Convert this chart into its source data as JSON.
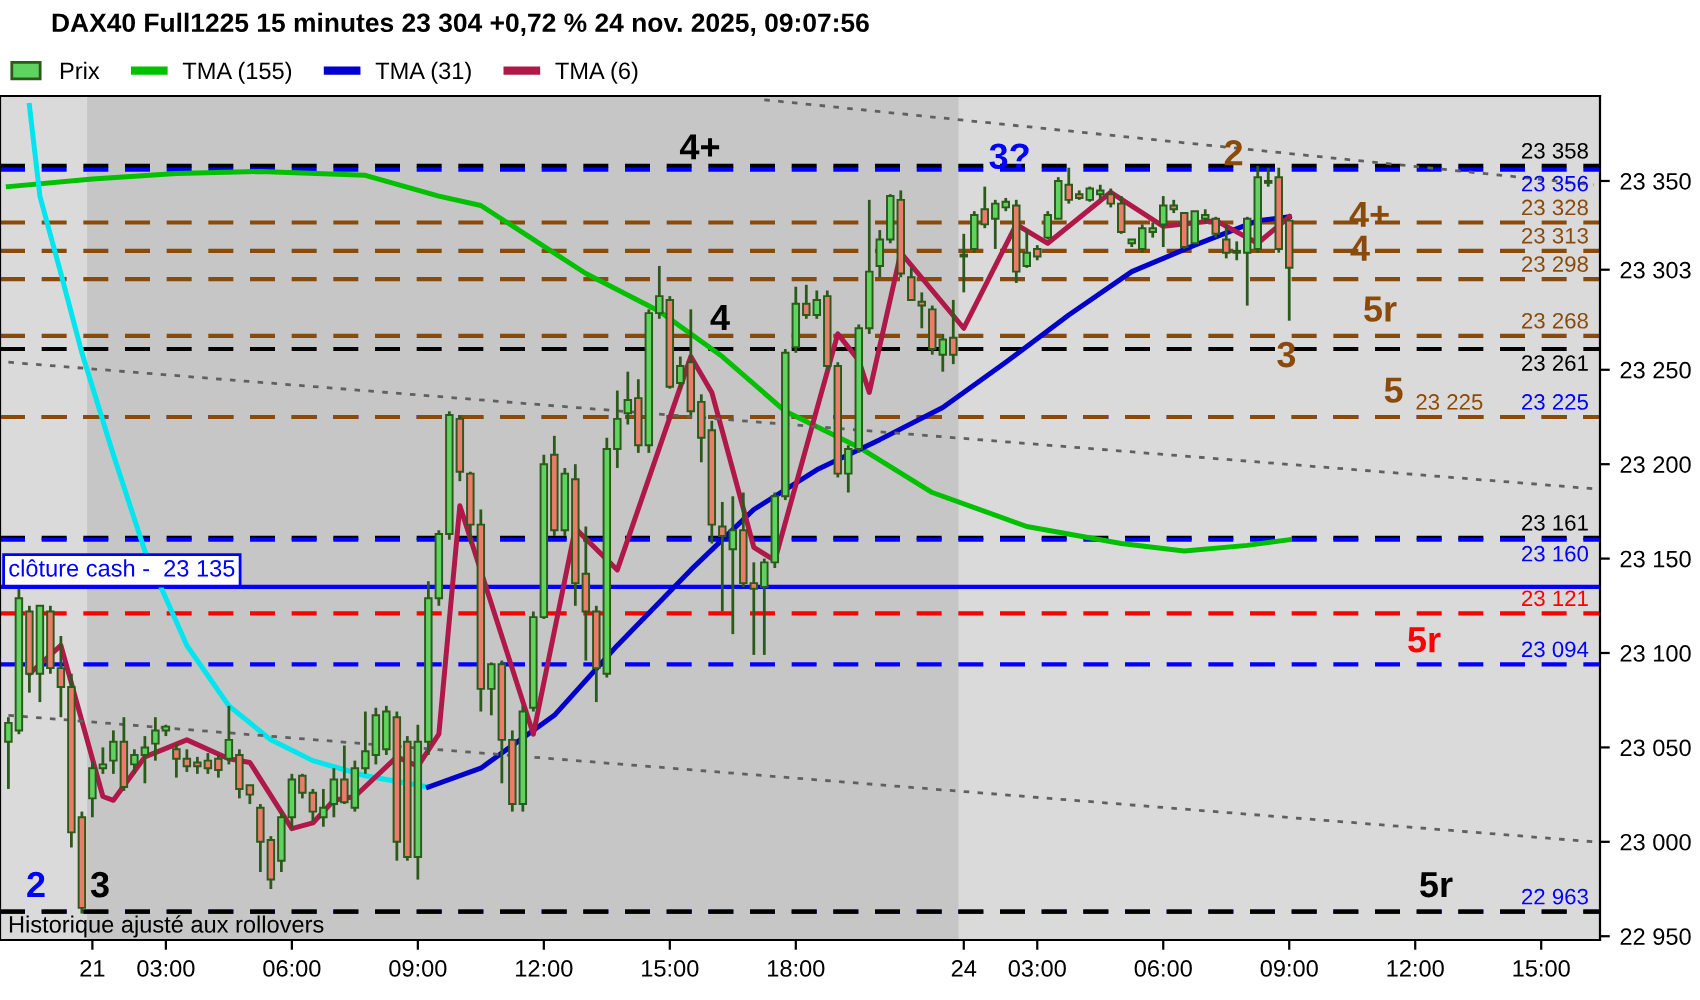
{
  "chart_data": {
    "type": "candlestick",
    "title": "DAX40 Full1225 15 minutes 23 304 +0,72 % 24 nov. 2025, 09:07:56",
    "categories": [
      null,
      null,
      null,
      null,
      null,
      null,
      null,
      null,
      "21",
      null,
      null,
      null,
      null,
      null,
      null,
      "03:00",
      null,
      null,
      null,
      null,
      null,
      null,
      null,
      null,
      null,
      null,
      null,
      "06:00",
      null,
      null,
      null,
      null,
      null,
      null,
      null,
      null,
      null,
      null,
      null,
      "09:00",
      null,
      null,
      null,
      null,
      null,
      null,
      null,
      null,
      null,
      null,
      null,
      "12:00",
      null,
      null,
      null,
      null,
      null,
      null,
      null,
      null,
      null,
      null,
      null,
      "15:00",
      null,
      null,
      null,
      null,
      null,
      null,
      null,
      null,
      null,
      null,
      null,
      "18:00",
      null,
      null,
      null,
      null,
      null,
      null,
      null,
      null,
      null,
      null,
      null,
      null,
      null,
      null,
      null,
      "24",
      null,
      null,
      null,
      null,
      null,
      null,
      "03:00",
      null,
      null,
      null,
      null,
      null,
      null,
      null,
      null,
      null,
      null,
      null,
      "06:00",
      null,
      null,
      null,
      null,
      null,
      null,
      null,
      null,
      null,
      null,
      null,
      "09:00",
      null,
      null,
      null,
      null,
      null,
      null,
      null,
      null,
      null,
      null,
      null,
      "12:00",
      null,
      null,
      null,
      null,
      null,
      null,
      null,
      null,
      null,
      null,
      null,
      "15:00",
      null,
      null,
      null,
      null,
      null
    ],
    "series": [
      {
        "name": "Prix",
        "type": "candlestick",
        "colors": [
          "#5fd35f",
          "#5fd35f",
          "#ec7b6c",
          "#5fd35f",
          "#ec7b6c",
          "#ec7b6c",
          "#ec7b6c",
          "#ec7b6c",
          "#5fd35f",
          "#5fd35f",
          "#5fd35f",
          "#ec7b6c",
          "#5fd35f",
          "#5fd35f",
          "#5fd35f",
          "#5fd35f",
          "#ec7b6c",
          "#ec7b6c",
          "#ec7b6c",
          "#ec7b6c",
          "#ec7b6c",
          "#5fd35f",
          "#ec7b6c",
          "#ec7b6c",
          "#ec7b6c",
          "#ec7b6c",
          "#5fd35f",
          "#5fd35f",
          "#ec7b6c",
          "#ec7b6c",
          "#5fd35f",
          "#5fd35f",
          "#ec7b6c",
          "#5fd35f",
          "#5fd35f",
          "#5fd35f",
          "#5fd35f",
          "#ec7b6c",
          "#ec7b6c",
          "#5fd35f",
          "#5fd35f",
          "#5fd35f",
          "#5fd35f",
          "#ec7b6c",
          "#ec7b6c",
          "#ec7b6c",
          "#5fd35f",
          "#ec7b6c",
          "#ec7b6c",
          "#5fd35f",
          "#5fd35f",
          "#5fd35f",
          "#ec7b6c",
          "#5fd35f",
          "#ec7b6c",
          "#ec7b6c",
          "#ec7b6c",
          "#5fd35f",
          "#5fd35f",
          "#5fd35f",
          "#ec7b6c",
          "#5fd35f",
          "#5fd35f",
          "#ec7b6c",
          "#5fd35f",
          "#ec7b6c",
          "#ec7b6c",
          "#ec7b6c",
          "#ec7b6c",
          "#5fd35f",
          "#ec7b6c",
          "#ec7b6c",
          "#5fd35f",
          "#5fd35f",
          "#5fd35f",
          "#5fd35f",
          "#ec7b6c",
          "#5fd35f",
          "#ec7b6c",
          "#ec7b6c",
          "#5fd35f",
          "#5fd35f",
          "#5fd35f",
          "#5fd35f",
          "#5fd35f",
          "#ec7b6c",
          "#ec7b6c",
          "#ec7b6c",
          "#ec7b6c",
          "#5fd35f",
          "#ec7b6c",
          "#5fd35f",
          "#5fd35f",
          "#ec7b6c",
          "#5fd35f",
          "#5fd35f",
          "#ec7b6c",
          "#5fd35f",
          "#ec7b6c",
          "#5fd35f",
          "#5fd35f",
          "#ec7b6c",
          "#ec7b6c",
          "#5fd35f",
          "#5fd35f",
          "#ec7b6c",
          "#ec7b6c",
          "#5fd35f",
          "#5fd35f",
          "#5fd35f",
          "#5fd35f",
          "#ec7b6c",
          "#ec7b6c",
          "#5fd35f",
          "#5fd35f",
          "#ec7b6c",
          "#ec7b6c",
          "#ec7b6c",
          "#5fd35f",
          "#5fd35f",
          "#5fd35f",
          "#ec7b6c",
          "#ec7b6c",
          null,
          null,
          null,
          null,
          null,
          null,
          null,
          null,
          null,
          null,
          null,
          null,
          null,
          null,
          null,
          null,
          null,
          null,
          null,
          null,
          null,
          null,
          null,
          null,
          null,
          null,
          null,
          null,
          null
        ],
        "ohlc": [
          [
            23053,
            23066,
            23028,
            23063
          ],
          [
            23059,
            23134,
            23057,
            23129
          ],
          [
            23122,
            23125,
            23079,
            23089
          ],
          [
            23089,
            23125,
            23074,
            23125
          ],
          [
            23122,
            23125,
            23089,
            23092
          ],
          [
            23092,
            23109,
            23066,
            23082
          ],
          [
            23082,
            23089,
            22997,
            23005
          ],
          [
            23013,
            23016,
            22962,
            22965
          ],
          [
            23023,
            23043,
            23013,
            23039
          ],
          [
            23039,
            23050,
            23036,
            23041
          ],
          [
            23043,
            23059,
            23036,
            23053
          ],
          [
            23053,
            23066,
            23027,
            23029
          ],
          [
            23041,
            23049,
            23036,
            23046
          ],
          [
            23046,
            23056,
            23031,
            23050
          ],
          [
            23052,
            23066,
            23043,
            23059
          ],
          [
            23059,
            23062,
            23056,
            23061
          ],
          [
            23049,
            23052,
            23034,
            23044
          ],
          [
            23044,
            23049,
            23037,
            23040
          ],
          [
            23042,
            23045,
            23036,
            23040
          ],
          [
            23043,
            23047,
            23036,
            23039
          ],
          [
            23044,
            23046,
            23034,
            23038
          ],
          [
            23044,
            23072,
            23041,
            23054
          ],
          [
            23046,
            23049,
            23023,
            23028
          ],
          [
            23030,
            23030,
            23020,
            23025
          ],
          [
            23018,
            23020,
            22984,
            23000
          ],
          [
            23001,
            23003,
            22975,
            22980
          ],
          [
            22990,
            23016,
            22984,
            23013
          ],
          [
            23013,
            23036,
            23007,
            23033
          ],
          [
            23035,
            23036,
            23023,
            23026
          ],
          [
            23026,
            23028,
            23011,
            23016
          ],
          [
            23013,
            23028,
            23008,
            23018
          ],
          [
            23020,
            23039,
            23013,
            23033
          ],
          [
            23033,
            23051,
            23020,
            23021
          ],
          [
            23018,
            23043,
            23016,
            23039
          ],
          [
            23039,
            23069,
            23036,
            23048
          ],
          [
            23046,
            23071,
            23041,
            23067
          ],
          [
            23049,
            23072,
            23046,
            23069
          ],
          [
            23066,
            23069,
            22990,
            23000
          ],
          [
            23053,
            23056,
            22990,
            22992
          ],
          [
            22992,
            23062,
            22980,
            23053
          ],
          [
            23053,
            23138,
            23046,
            23129
          ],
          [
            23129,
            23165,
            23125,
            23163
          ],
          [
            23163,
            23228,
            23160,
            23226
          ],
          [
            23224,
            23226,
            23191,
            23196
          ],
          [
            23195,
            23196,
            23158,
            23168
          ],
          [
            23168,
            23176,
            23069,
            23081
          ],
          [
            23081,
            23095,
            23067,
            23094
          ],
          [
            23094,
            23096,
            23031,
            23054
          ],
          [
            23054,
            23059,
            23016,
            23020
          ],
          [
            23020,
            23072,
            23016,
            23069
          ],
          [
            23071,
            23122,
            23069,
            23119
          ],
          [
            23119,
            23205,
            23118,
            23200
          ],
          [
            23205,
            23215,
            23162,
            23165
          ],
          [
            23165,
            23198,
            23162,
            23195
          ],
          [
            23192,
            23200,
            23125,
            23137
          ],
          [
            23142,
            23167,
            23096,
            23122
          ],
          [
            23122,
            23125,
            23074,
            23092
          ],
          [
            23089,
            23214,
            23087,
            23208
          ],
          [
            23208,
            23239,
            23198,
            23224
          ],
          [
            23227,
            23249,
            23221,
            23234
          ],
          [
            23235,
            23245,
            23206,
            23210
          ],
          [
            23210,
            23282,
            23206,
            23280
          ],
          [
            23280,
            23305,
            23277,
            23289
          ],
          [
            23287,
            23289,
            23240,
            23241
          ],
          [
            23243,
            23257,
            23240,
            23252
          ],
          [
            23254,
            23282,
            23226,
            23228
          ],
          [
            23233,
            23237,
            23201,
            23214
          ],
          [
            23218,
            23223,
            23158,
            23168
          ],
          [
            23167,
            23180,
            23122,
            23162
          ],
          [
            23155,
            23183,
            23110,
            23165
          ],
          [
            23165,
            23185,
            23135,
            23137
          ],
          [
            23137,
            23148,
            23099,
            23134
          ],
          [
            23135,
            23150,
            23099,
            23148
          ],
          [
            23148,
            23185,
            23145,
            23183
          ],
          [
            23183,
            23261,
            23181,
            23259
          ],
          [
            23262,
            23294,
            23259,
            23285
          ],
          [
            23285,
            23295,
            23277,
            23279
          ],
          [
            23279,
            23292,
            23277,
            23287
          ],
          [
            23289,
            23292,
            23250,
            23252
          ],
          [
            23252,
            23254,
            23193,
            23195
          ],
          [
            23195,
            23210,
            23185,
            23208
          ],
          [
            23208,
            23274,
            23206,
            23272
          ],
          [
            23272,
            23340,
            23269,
            23302
          ],
          [
            23305,
            23324,
            23299,
            23319
          ],
          [
            23319,
            23343,
            23317,
            23342
          ],
          [
            23340,
            23345,
            23299,
            23301
          ],
          [
            23299,
            23304,
            23287,
            23287
          ],
          [
            23286,
            23291,
            23272,
            23284
          ],
          [
            23282,
            23284,
            23258,
            23261
          ],
          [
            23258,
            23269,
            23249,
            23266
          ],
          [
            23267,
            23287,
            23253,
            23258
          ],
          [
            23310,
            23322,
            23291,
            23311
          ],
          [
            23314,
            23334,
            23312,
            23332
          ],
          [
            23335,
            23347,
            23325,
            23327
          ],
          [
            23330,
            23340,
            23314,
            23338
          ],
          [
            23336,
            23341,
            23334,
            23339
          ],
          [
            23337,
            23340,
            23296,
            23302
          ],
          [
            23305,
            23324,
            23304,
            23312
          ],
          [
            23314,
            23316,
            23308,
            23310
          ],
          [
            23320,
            23334,
            23319,
            23332
          ],
          [
            23330,
            23352,
            23330,
            23350
          ],
          [
            23348,
            23357,
            23338,
            23340
          ],
          [
            23343,
            23345,
            23340,
            23341
          ],
          [
            23340,
            23347,
            23339,
            23346
          ],
          [
            23343,
            23348,
            23340,
            23345
          ],
          [
            23343,
            23346,
            23336,
            23338
          ],
          [
            23338,
            23342,
            23322,
            23323
          ],
          [
            23317,
            23319,
            23315,
            23319
          ],
          [
            23314,
            23327,
            23312,
            23325
          ],
          [
            23323,
            23328,
            23320,
            23325
          ],
          [
            23327,
            23342,
            23315,
            23337
          ],
          [
            23337,
            23340,
            23333,
            23335
          ],
          [
            23333,
            23333,
            23314,
            23315
          ],
          [
            23317,
            23334,
            23317,
            23334
          ],
          [
            23330,
            23335,
            23328,
            23332
          ],
          [
            23330,
            23331,
            23320,
            23322
          ],
          [
            23319,
            23327,
            23309,
            23312
          ],
          [
            23313,
            23318,
            23308,
            23312
          ],
          [
            23312,
            23331,
            23284,
            23330
          ],
          [
            23314,
            23358,
            23312,
            23352
          ],
          [
            23349,
            23357,
            23347,
            23350
          ],
          [
            23352,
            23357,
            23312,
            23314
          ],
          [
            23329,
            23330,
            23276,
            23304
          ],
          null,
          null,
          null,
          null,
          null,
          null,
          null,
          null,
          null,
          null,
          null,
          null,
          null,
          null,
          null,
          null,
          null,
          null,
          null,
          null,
          null,
          null,
          null,
          null,
          null,
          null,
          null,
          null,
          null
        ]
      },
      {
        "name": "TMA (155)",
        "type": "line",
        "color": "#00c000",
        "values": [
          23347,
          null,
          null,
          null,
          null,
          null,
          null,
          null,
          23351,
          null,
          null,
          null,
          null,
          null,
          null,
          null,
          23354,
          null,
          null,
          null,
          null,
          null,
          null,
          null,
          23355,
          null,
          null,
          null,
          null,
          null,
          null,
          null,
          null,
          null,
          23353,
          null,
          null,
          null,
          null,
          null,
          null,
          23342,
          null,
          null,
          null,
          23337,
          null,
          null,
          null,
          null,
          null,
          null,
          null,
          null,
          null,
          23301,
          null,
          null,
          null,
          null,
          null,
          null,
          23281,
          null,
          null,
          null,
          null,
          null,
          23257,
          null,
          null,
          null,
          null,
          null,
          23228,
          null,
          null,
          null,
          null,
          null,
          null,
          23209,
          null,
          null,
          null,
          null,
          null,
          null,
          23185,
          null,
          null,
          null,
          null,
          null,
          null,
          null,
          null,
          23167,
          null,
          null,
          null,
          null,
          null,
          null,
          null,
          null,
          23158,
          null,
          null,
          null,
          null,
          null,
          23154,
          null,
          null,
          null,
          null,
          null,
          23157,
          null,
          null,
          null,
          23160,
          null,
          null,
          null,
          null,
          null,
          null,
          null,
          null,
          null,
          null,
          null,
          null,
          null,
          null,
          null,
          null,
          null,
          null,
          null,
          null,
          null,
          null,
          null,
          null,
          null,
          null,
          null,
          null,
          null
        ]
      },
      {
        "type": "line",
        "color": "#00e5ee",
        "values": [
          null,
          null,
          23390,
          23342,
          null,
          23301,
          null,
          23259,
          null,
          null,
          23205,
          null,
          null,
          23154,
          null,
          null,
          null,
          23104,
          null,
          null,
          null,
          23072,
          null,
          null,
          null,
          23054,
          null,
          null,
          null,
          23043,
          null,
          null,
          null,
          null,
          23035,
          null,
          null,
          null,
          null,
          null,
          23029,
          null,
          null,
          null,
          null,
          null,
          null,
          null,
          null,
          null,
          null,
          null,
          null,
          null,
          null,
          null,
          null,
          null,
          null,
          null,
          null,
          null,
          null,
          null,
          null,
          null,
          null,
          null,
          null,
          null,
          null,
          null,
          null,
          null,
          null,
          null,
          null,
          null,
          null,
          null,
          null,
          null,
          null,
          null,
          null,
          null,
          null,
          null,
          null,
          null,
          null,
          null,
          null,
          null,
          null,
          null,
          null,
          null,
          null,
          null,
          null,
          null,
          null,
          null,
          null,
          null,
          null,
          null,
          null,
          null,
          null,
          null,
          null,
          null,
          null,
          null,
          null,
          null,
          null,
          null,
          null,
          null,
          null,
          null,
          null,
          null,
          null,
          null,
          null,
          null,
          null,
          null,
          null,
          null,
          null,
          null,
          null,
          null,
          null,
          null,
          null,
          null,
          null,
          null,
          null,
          null,
          null,
          null,
          null,
          null,
          null,
          null
        ]
      },
      {
        "name": "TMA (31)",
        "type": "line",
        "color": "#0000cc",
        "values": [
          null,
          null,
          null,
          null,
          null,
          null,
          null,
          null,
          null,
          null,
          null,
          null,
          null,
          null,
          null,
          null,
          null,
          null,
          null,
          null,
          null,
          null,
          null,
          null,
          null,
          null,
          null,
          null,
          null,
          null,
          null,
          null,
          null,
          null,
          null,
          null,
          null,
          null,
          null,
          null,
          23029,
          null,
          null,
          null,
          null,
          23039,
          null,
          null,
          null,
          null,
          null,
          null,
          23067,
          null,
          null,
          null,
          null,
          null,
          23104,
          null,
          null,
          null,
          null,
          null,
          null,
          23144,
          null,
          null,
          null,
          null,
          null,
          23176,
          null,
          null,
          null,
          null,
          null,
          23197,
          null,
          null,
          null,
          null,
          null,
          23213,
          null,
          null,
          null,
          null,
          null,
          23230,
          null,
          null,
          null,
          null,
          null,
          23254,
          null,
          null,
          null,
          null,
          null,
          23279,
          null,
          null,
          null,
          null,
          null,
          23302,
          null,
          null,
          null,
          null,
          null,
          23316,
          null,
          null,
          null,
          null,
          null,
          23329,
          null,
          null,
          23331,
          null,
          null,
          null,
          null,
          null,
          null,
          null,
          null,
          null,
          null,
          null,
          null,
          null,
          null,
          null,
          null,
          null,
          null,
          null,
          null,
          null,
          null,
          null,
          null,
          null,
          null,
          null,
          null,
          null
        ]
      },
      {
        "name": "TMA (6)",
        "type": "line",
        "color": "#b0184a",
        "values": [
          null,
          null,
          23089,
          null,
          null,
          23104,
          null,
          null,
          null,
          23024,
          23022,
          null,
          null,
          23045,
          null,
          null,
          null,
          23054,
          null,
          null,
          null,
          23044,
          null,
          23042,
          null,
          null,
          null,
          23007,
          null,
          23010,
          null,
          23022,
          null,
          23024,
          null,
          null,
          null,
          23045,
          null,
          23040,
          null,
          23057,
          null,
          23178,
          null,
          null,
          null,
          null,
          null,
          null,
          23057,
          null,
          null,
          null,
          23166,
          null,
          null,
          null,
          23144,
          null,
          null,
          null,
          null,
          null,
          null,
          23257,
          null,
          23238,
          null,
          null,
          null,
          23156,
          null,
          23149,
          null,
          null,
          null,
          null,
          null,
          23269,
          null,
          23255,
          23238,
          null,
          null,
          23312,
          null,
          null,
          null,
          null,
          null,
          23272,
          null,
          null,
          null,
          null,
          23327,
          null,
          null,
          23317,
          null,
          null,
          null,
          null,
          null,
          23344,
          null,
          null,
          null,
          null,
          23326,
          null,
          null,
          null,
          null,
          23329,
          null,
          null,
          null,
          23317,
          null,
          null,
          23331,
          null,
          null,
          null,
          null,
          null,
          null,
          null,
          null,
          null,
          null,
          null,
          null,
          null,
          null,
          null,
          null,
          null,
          null,
          null,
          null,
          null,
          null,
          null,
          null,
          null,
          null,
          null,
          null,
          null
        ]
      },
      {
        "type": "line",
        "color": "#606060",
        "line_style": "dotted",
        "values": [
          null,
          null,
          null,
          null,
          null,
          null,
          null,
          null,
          null,
          null,
          null,
          null,
          null,
          null,
          null,
          null,
          null,
          null,
          null,
          null,
          null,
          null,
          null,
          null,
          null,
          null,
          null,
          null,
          null,
          null,
          null,
          null,
          null,
          null,
          null,
          null,
          null,
          null,
          null,
          null,
          null,
          null,
          null,
          null,
          null,
          null,
          null,
          null,
          null,
          null,
          null,
          null,
          null,
          null,
          null,
          null,
          null,
          null,
          null,
          null,
          null,
          null,
          null,
          null,
          null,
          null,
          null,
          null,
          null,
          null,
          null,
          null,
          23393,
          null,
          null,
          null,
          null,
          null,
          null,
          null,
          null,
          null,
          null,
          null,
          null,
          null,
          null,
          null,
          null,
          null,
          null,
          null,
          null,
          null,
          null,
          null,
          null,
          null,
          null,
          null,
          null,
          null,
          null,
          null,
          null,
          null,
          null,
          null,
          null,
          null,
          null,
          null,
          null,
          null,
          null,
          null,
          null,
          null,
          null,
          null,
          null,
          null,
          null,
          null,
          null,
          null,
          null,
          null,
          null,
          null,
          null,
          null,
          null,
          null,
          null,
          null,
          null,
          null,
          null,
          null,
          null,
          null,
          null,
          null,
          null,
          null,
          null,
          null,
          null,
          null,
          null,
          23348
        ]
      },
      {
        "type": "line",
        "color": "#606060",
        "line_style": "dotted",
        "values": [
          23254,
          null,
          null,
          null,
          null,
          null,
          null,
          null,
          null,
          null,
          null,
          null,
          null,
          null,
          null,
          null,
          null,
          null,
          null,
          null,
          null,
          null,
          null,
          null,
          null,
          null,
          null,
          null,
          null,
          null,
          null,
          null,
          null,
          null,
          null,
          null,
          null,
          null,
          null,
          null,
          null,
          null,
          null,
          null,
          null,
          null,
          null,
          null,
          null,
          null,
          null,
          null,
          null,
          null,
          null,
          null,
          null,
          null,
          null,
          null,
          null,
          null,
          null,
          null,
          null,
          null,
          null,
          null,
          null,
          null,
          null,
          null,
          null,
          null,
          null,
          null,
          null,
          null,
          null,
          null,
          null,
          null,
          null,
          null,
          null,
          null,
          null,
          null,
          null,
          null,
          null,
          null,
          null,
          null,
          null,
          null,
          null,
          null,
          null,
          null,
          null,
          null,
          null,
          null,
          null,
          null,
          null,
          null,
          null,
          null,
          null,
          null,
          null,
          null,
          null,
          null,
          null,
          null,
          null,
          null,
          null,
          null,
          null,
          null,
          null,
          null,
          null,
          null,
          null,
          null,
          null,
          null,
          null,
          null,
          null,
          null,
          null,
          null,
          null,
          null,
          null,
          null,
          null,
          null,
          null,
          null,
          null,
          null,
          null,
          null,
          null,
          23187
        ]
      },
      {
        "type": "line",
        "color": "#606060",
        "line_style": "dotted",
        "values": [
          23067,
          null,
          null,
          null,
          null,
          null,
          null,
          null,
          null,
          null,
          null,
          null,
          null,
          null,
          null,
          null,
          null,
          null,
          null,
          null,
          null,
          null,
          null,
          null,
          null,
          null,
          null,
          null,
          null,
          null,
          null,
          null,
          null,
          null,
          null,
          null,
          null,
          null,
          null,
          null,
          null,
          null,
          null,
          null,
          null,
          null,
          null,
          null,
          null,
          null,
          null,
          null,
          null,
          null,
          null,
          null,
          null,
          null,
          null,
          null,
          null,
          null,
          null,
          null,
          null,
          null,
          null,
          null,
          null,
          null,
          null,
          null,
          null,
          null,
          null,
          null,
          null,
          null,
          null,
          null,
          null,
          null,
          null,
          null,
          null,
          null,
          null,
          null,
          null,
          null,
          null,
          null,
          null,
          null,
          null,
          null,
          null,
          null,
          null,
          null,
          null,
          null,
          null,
          null,
          null,
          null,
          null,
          null,
          null,
          null,
          null,
          null,
          null,
          null,
          null,
          null,
          null,
          null,
          null,
          null,
          null,
          null,
          null,
          null,
          null,
          null,
          null,
          null,
          null,
          null,
          null,
          null,
          null,
          null,
          null,
          null,
          null,
          null,
          null,
          null,
          null,
          null,
          null,
          null,
          null,
          null,
          null,
          null,
          null,
          null,
          null,
          23000
        ]
      }
    ],
    "ylim": [
      22948,
      23395
    ],
    "yticks": [
      {
        "value": 22950,
        "label": "22 950"
      },
      {
        "value": 23000,
        "label": "23 000"
      },
      {
        "value": 23050,
        "label": "23 050"
      },
      {
        "value": 23100,
        "label": "23 100"
      },
      {
        "value": 23150,
        "label": "23 150"
      },
      {
        "value": 23200,
        "label": "23 200"
      },
      {
        "value": 23250,
        "label": "23 250"
      },
      {
        "value": 23303,
        "label": "23 303"
      },
      {
        "value": 23350,
        "label": "23 350"
      }
    ],
    "bands": [
      {
        "axis": "x",
        "from": "21",
        "to": "24",
        "color": "#c6c6c6"
      }
    ],
    "ref_lines": [
      {
        "axis": "y",
        "value": 23358,
        "label": "23 358",
        "color": "#000000",
        "line_style": "dashed"
      },
      {
        "axis": "y",
        "value": 23356,
        "label": "23 356",
        "color": "#0000ff",
        "line_style": "dashed"
      },
      {
        "axis": "y",
        "value": 23328,
        "label": "23 328",
        "color": "#8a4a0a",
        "line_style": "dashed"
      },
      {
        "axis": "y",
        "value": 23313,
        "label": "23 313",
        "color": "#8a4a0a",
        "line_style": "dashed"
      },
      {
        "axis": "y",
        "value": 23298,
        "label": "23 298",
        "color": "#8a4a0a",
        "line_style": "dashed"
      },
      {
        "axis": "y",
        "value": 23268,
        "label": "23 268",
        "color": "#8a4a0a",
        "line_style": "dashed"
      },
      {
        "axis": "y",
        "value": 23261,
        "label": "23 261",
        "color": "#000000",
        "line_style": "dashed"
      },
      {
        "axis": "y",
        "value": 23225,
        "label": "23 225",
        "color": "#0000ff",
        "line_style": "dashed"
      },
      {
        "axis": "y",
        "value": 23225,
        "label": "23 225",
        "color": "#8a4a0a",
        "line_style": "dashed"
      },
      {
        "axis": "y",
        "value": 23161,
        "label": "23 161",
        "color": "#000000",
        "line_style": "dashed"
      },
      {
        "axis": "y",
        "value": 23160,
        "label": "23 160",
        "color": "#0000ff",
        "line_style": "dashed"
      },
      {
        "axis": "y",
        "value": 23135,
        "label": "clôture cash -  23 135",
        "color": "#0000ff",
        "line_style": "solid"
      },
      {
        "axis": "y",
        "value": 23121,
        "label": "23 121",
        "color": "#ff0000",
        "line_style": "dashed"
      },
      {
        "axis": "y",
        "value": 23094,
        "label": "23 094",
        "color": "#0000ff",
        "line_style": "dashed"
      },
      {
        "axis": "y",
        "value": 22963,
        "label": "22 963",
        "color": "#0000ff",
        "line_style": "dashed"
      },
      {
        "axis": "y",
        "value": 22963,
        "label": null,
        "color": "#000000",
        "line_style": "dashed"
      }
    ],
    "annotations": [
      "4+",
      "3?",
      "2",
      "4+",
      "4",
      "3",
      "5r",
      "5",
      "4",
      "5r",
      "5r",
      "2",
      "3",
      "Historique ajusté aux rollovers"
    ],
    "legend": "top left"
  }
}
